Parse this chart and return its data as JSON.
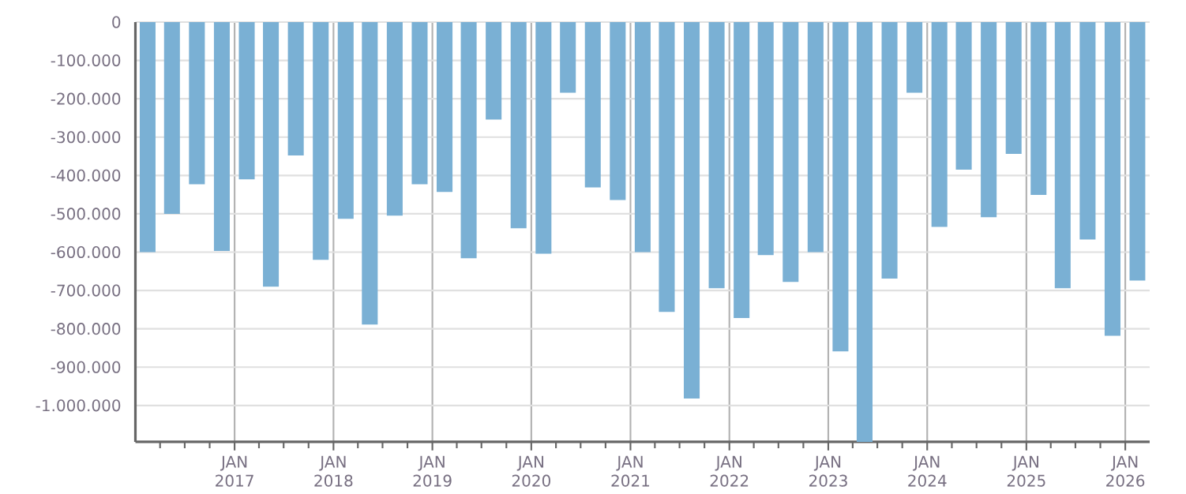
{
  "chart_data": {
    "type": "bar",
    "color": "#7ab0d4",
    "grid": true,
    "x": [
      "2016-02-15",
      "2016-05-15",
      "2016-08-15",
      "2016-11-15",
      "2017-02-15",
      "2017-05-15",
      "2017-08-15",
      "2017-11-15",
      "2018-02-15",
      "2018-05-15",
      "2018-08-15",
      "2018-11-15",
      "2019-02-15",
      "2019-05-15",
      "2019-08-15",
      "2019-11-15",
      "2020-02-15",
      "2020-05-15",
      "2020-08-15",
      "2020-11-15",
      "2021-02-15",
      "2021-05-15",
      "2021-08-15",
      "2021-11-15",
      "2022-02-15",
      "2022-05-15",
      "2022-08-15",
      "2022-11-15",
      "2023-02-15",
      "2023-05-15",
      "2023-08-15",
      "2023-11-15",
      "2024-02-15",
      "2024-05-15",
      "2024-08-15",
      "2024-11-15",
      "2025-02-15",
      "2025-05-15",
      "2025-08-15",
      "2025-11-15",
      "2026-02-15"
    ],
    "values": [
      -600000,
      -500000,
      -423000,
      -597000,
      -410000,
      -690000,
      -348000,
      -620000,
      -513000,
      -789000,
      -505000,
      -423000,
      -443000,
      -616000,
      -254000,
      -538000,
      -604000,
      -184000,
      -431000,
      -464000,
      -600000,
      -756000,
      -982000,
      -694000,
      -772000,
      -608000,
      -678000,
      -600000,
      -859000,
      -1095000,
      -669000,
      -184000,
      -534000,
      -385000,
      -509000,
      -344000,
      -451000,
      -694000,
      -567000,
      -818000,
      -674000
    ],
    "xlim": [
      "2016-01-01",
      "2026-04-01"
    ],
    "ylim": [
      -1095000,
      0
    ],
    "xticks": [
      {
        "value": "2016-04-01",
        "label": null
      },
      {
        "value": "2016-07-01",
        "label": null
      },
      {
        "value": "2016-10-01",
        "label": null
      },
      {
        "value": "2017-01-01",
        "label": "JAN 2017"
      },
      {
        "value": "2017-04-01",
        "label": null
      },
      {
        "value": "2017-07-01",
        "label": null
      },
      {
        "value": "2017-10-01",
        "label": null
      },
      {
        "value": "2018-01-01",
        "label": "JAN 2018"
      },
      {
        "value": "2018-04-01",
        "label": null
      },
      {
        "value": "2018-07-01",
        "label": null
      },
      {
        "value": "2018-10-01",
        "label": null
      },
      {
        "value": "2019-01-01",
        "label": "JAN 2019"
      },
      {
        "value": "2019-04-01",
        "label": null
      },
      {
        "value": "2019-07-01",
        "label": null
      },
      {
        "value": "2019-10-01",
        "label": null
      },
      {
        "value": "2020-01-01",
        "label": "JAN 2020"
      },
      {
        "value": "2020-04-01",
        "label": null
      },
      {
        "value": "2020-07-01",
        "label": null
      },
      {
        "value": "2020-10-01",
        "label": null
      },
      {
        "value": "2021-01-01",
        "label": "JAN 2021"
      },
      {
        "value": "2021-04-01",
        "label": null
      },
      {
        "value": "2021-07-01",
        "label": null
      },
      {
        "value": "2021-10-01",
        "label": null
      },
      {
        "value": "2022-01-01",
        "label": "JAN 2022"
      },
      {
        "value": "2022-04-01",
        "label": null
      },
      {
        "value": "2022-07-01",
        "label": null
      },
      {
        "value": "2022-10-01",
        "label": null
      },
      {
        "value": "2023-01-01",
        "label": "JAN 2023"
      },
      {
        "value": "2023-04-01",
        "label": null
      },
      {
        "value": "2023-07-01",
        "label": null
      },
      {
        "value": "2023-10-01",
        "label": null
      },
      {
        "value": "2024-01-01",
        "label": "JAN 2024"
      },
      {
        "value": "2024-04-01",
        "label": null
      },
      {
        "value": "2024-07-01",
        "label": null
      },
      {
        "value": "2024-10-01",
        "label": null
      },
      {
        "value": "2025-01-01",
        "label": "JAN 2025"
      },
      {
        "value": "2025-04-01",
        "label": null
      },
      {
        "value": "2025-07-01",
        "label": null
      },
      {
        "value": "2025-10-01",
        "label": null
      },
      {
        "value": "2026-01-01",
        "label": "JAN 2026"
      }
    ],
    "yticks": [
      0,
      {
        "value": -100000,
        "label": "-100.000"
      },
      {
        "value": -200000,
        "label": "-200.000"
      },
      {
        "value": -300000,
        "label": "-300.000"
      },
      {
        "value": -400000,
        "label": "-400.000"
      },
      {
        "value": -500000,
        "label": "-500.000"
      },
      {
        "value": -600000,
        "label": "-600.000"
      },
      {
        "value": -700000,
        "label": "-700.000"
      },
      {
        "value": -800000,
        "label": "-800.000"
      },
      {
        "value": -900000,
        "label": "-900.000"
      },
      {
        "value": -1000000,
        "label": "-1.000.000"
      }
    ]
  }
}
